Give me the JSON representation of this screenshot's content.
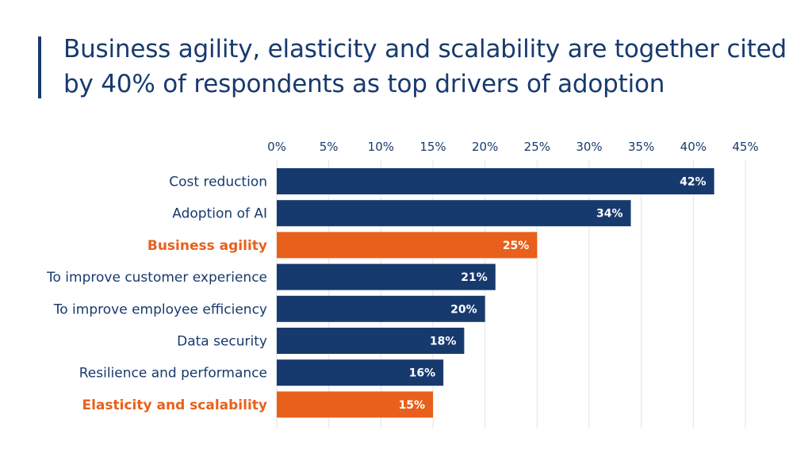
{
  "title": "Business agility, elasticity and scalability are together cited by 40% of respondents as top drivers of adoption",
  "chart_data": {
    "type": "bar",
    "orientation": "horizontal",
    "categories": [
      "Cost reduction",
      "Adoption of AI",
      "Business agility",
      "To improve customer experience",
      "To improve employee efficiency",
      "Data security",
      "Resilience and performance",
      "Elasticity and scalability"
    ],
    "values": [
      42,
      34,
      25,
      21,
      20,
      18,
      16,
      15
    ],
    "value_labels": [
      "42%",
      "34%",
      "25%",
      "21%",
      "20%",
      "18%",
      "16%",
      "15%"
    ],
    "highlighted": [
      false,
      false,
      true,
      false,
      false,
      false,
      false,
      true
    ],
    "xlim": [
      0,
      45
    ],
    "x_ticks": [
      0,
      5,
      10,
      15,
      20,
      25,
      30,
      35,
      40,
      45
    ],
    "x_tick_labels": [
      "0%",
      "5%",
      "10%",
      "15%",
      "20%",
      "25%",
      "30%",
      "35%",
      "40%",
      "45%"
    ],
    "x_axis_position": "top",
    "grid": true,
    "colors": {
      "default": "#173a6e",
      "highlight": "#e8601c",
      "grid": "#e3e3e3"
    }
  }
}
